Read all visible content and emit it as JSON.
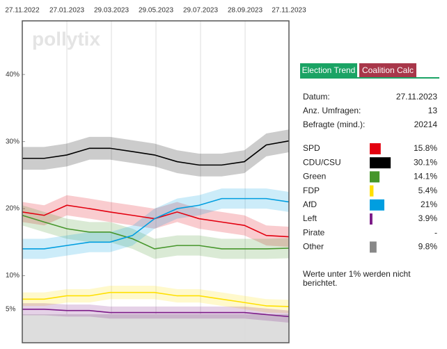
{
  "chart_data": {
    "type": "line",
    "watermark": "pollytix",
    "x": [
      "27.11.2022",
      "27.12.2022",
      "27.01.2023",
      "27.02.2023",
      "27.03.2023",
      "27.04.2023",
      "27.05.2023",
      "27.06.2023",
      "27.07.2023",
      "27.08.2023",
      "27.09.2023",
      "27.10.2023",
      "27.11.2023"
    ],
    "xlim": [
      "27.11.2022",
      "27.11.2023"
    ],
    "xticks": [
      "27.11.2022",
      "27.01.2023",
      "29.03.2023",
      "29.05.2023",
      "29.07.2023",
      "28.09.2023",
      "27.11.2023"
    ],
    "ylim": [
      0,
      48
    ],
    "yticks": [
      {
        "value": 5,
        "label": "5%"
      },
      {
        "value": 10,
        "label": "10%"
      },
      {
        "value": 20,
        "label": "20%"
      },
      {
        "value": 30,
        "label": "30%"
      },
      {
        "value": 40,
        "label": "40%"
      }
    ],
    "series": [
      {
        "color": "#e3000f",
        "margin": 1.5,
        "values": [
          19.5,
          19,
          20.5,
          20,
          19.5,
          19,
          18.5,
          19.5,
          18.5,
          18,
          17.5,
          16,
          15.8
        ]
      },
      {
        "color": "#000000",
        "margin": 1.7,
        "values": [
          27.5,
          27.5,
          28,
          29,
          29,
          28.5,
          28,
          27,
          26.5,
          26.5,
          27,
          29.5,
          30.1
        ]
      },
      {
        "color": "#46962b",
        "margin": 1.5,
        "values": [
          19,
          18,
          17,
          16.5,
          16.5,
          15.5,
          14,
          14.5,
          14.5,
          14,
          14,
          14,
          14.1
        ]
      },
      {
        "color": "#ffe000",
        "margin": 1.0,
        "values": [
          6.5,
          6.5,
          7,
          7,
          7.5,
          7.5,
          7.5,
          7,
          7,
          6.5,
          6,
          5.5,
          5.4
        ]
      },
      {
        "color": "#009ee0",
        "margin": 1.5,
        "values": [
          14,
          14,
          14.5,
          15,
          15,
          16,
          18.5,
          20,
          20.5,
          21.5,
          21.5,
          21.5,
          21
        ]
      },
      {
        "color": "#7b1a87",
        "margin": 0.9,
        "values": [
          5,
          5,
          4.8,
          4.8,
          4.5,
          4.5,
          4.5,
          4.5,
          4.5,
          4.5,
          4.5,
          4.2,
          3.9
        ]
      }
    ]
  },
  "panel": {
    "tabs": [
      "Election Trend",
      "Coalition Calc"
    ],
    "info": [
      {
        "label": "Datum:",
        "value": "27.11.2023"
      },
      {
        "label": "Anz. Umfragen:",
        "value": 13
      },
      {
        "label": "Befragte (mind.):",
        "value": 20214
      }
    ],
    "parties": [
      {
        "name": "SPD",
        "color": "#e3000f",
        "value": 15.8,
        "label": "15.8%"
      },
      {
        "name": "CDU/CSU",
        "color": "#000000",
        "value": 30.1,
        "label": "30.1%"
      },
      {
        "name": "Green",
        "color": "#46962b",
        "value": 14.1,
        "label": "14.1%"
      },
      {
        "name": "FDP",
        "color": "#ffe000",
        "value": 5.4,
        "label": "5.4%"
      },
      {
        "name": "AfD",
        "color": "#009ee0",
        "value": 21,
        "label": "21%"
      },
      {
        "name": "Left",
        "color": "#7b1a87",
        "value": 3.9,
        "label": "3.9%"
      },
      {
        "name": "Pirate",
        "color": "#ff8800",
        "value": null,
        "label": "-"
      },
      {
        "name": "Other",
        "color": "#888888",
        "value": 9.8,
        "label": "9.8%"
      }
    ],
    "note": [
      "Werte unter 1% werden nicht",
      "berichtet."
    ]
  }
}
